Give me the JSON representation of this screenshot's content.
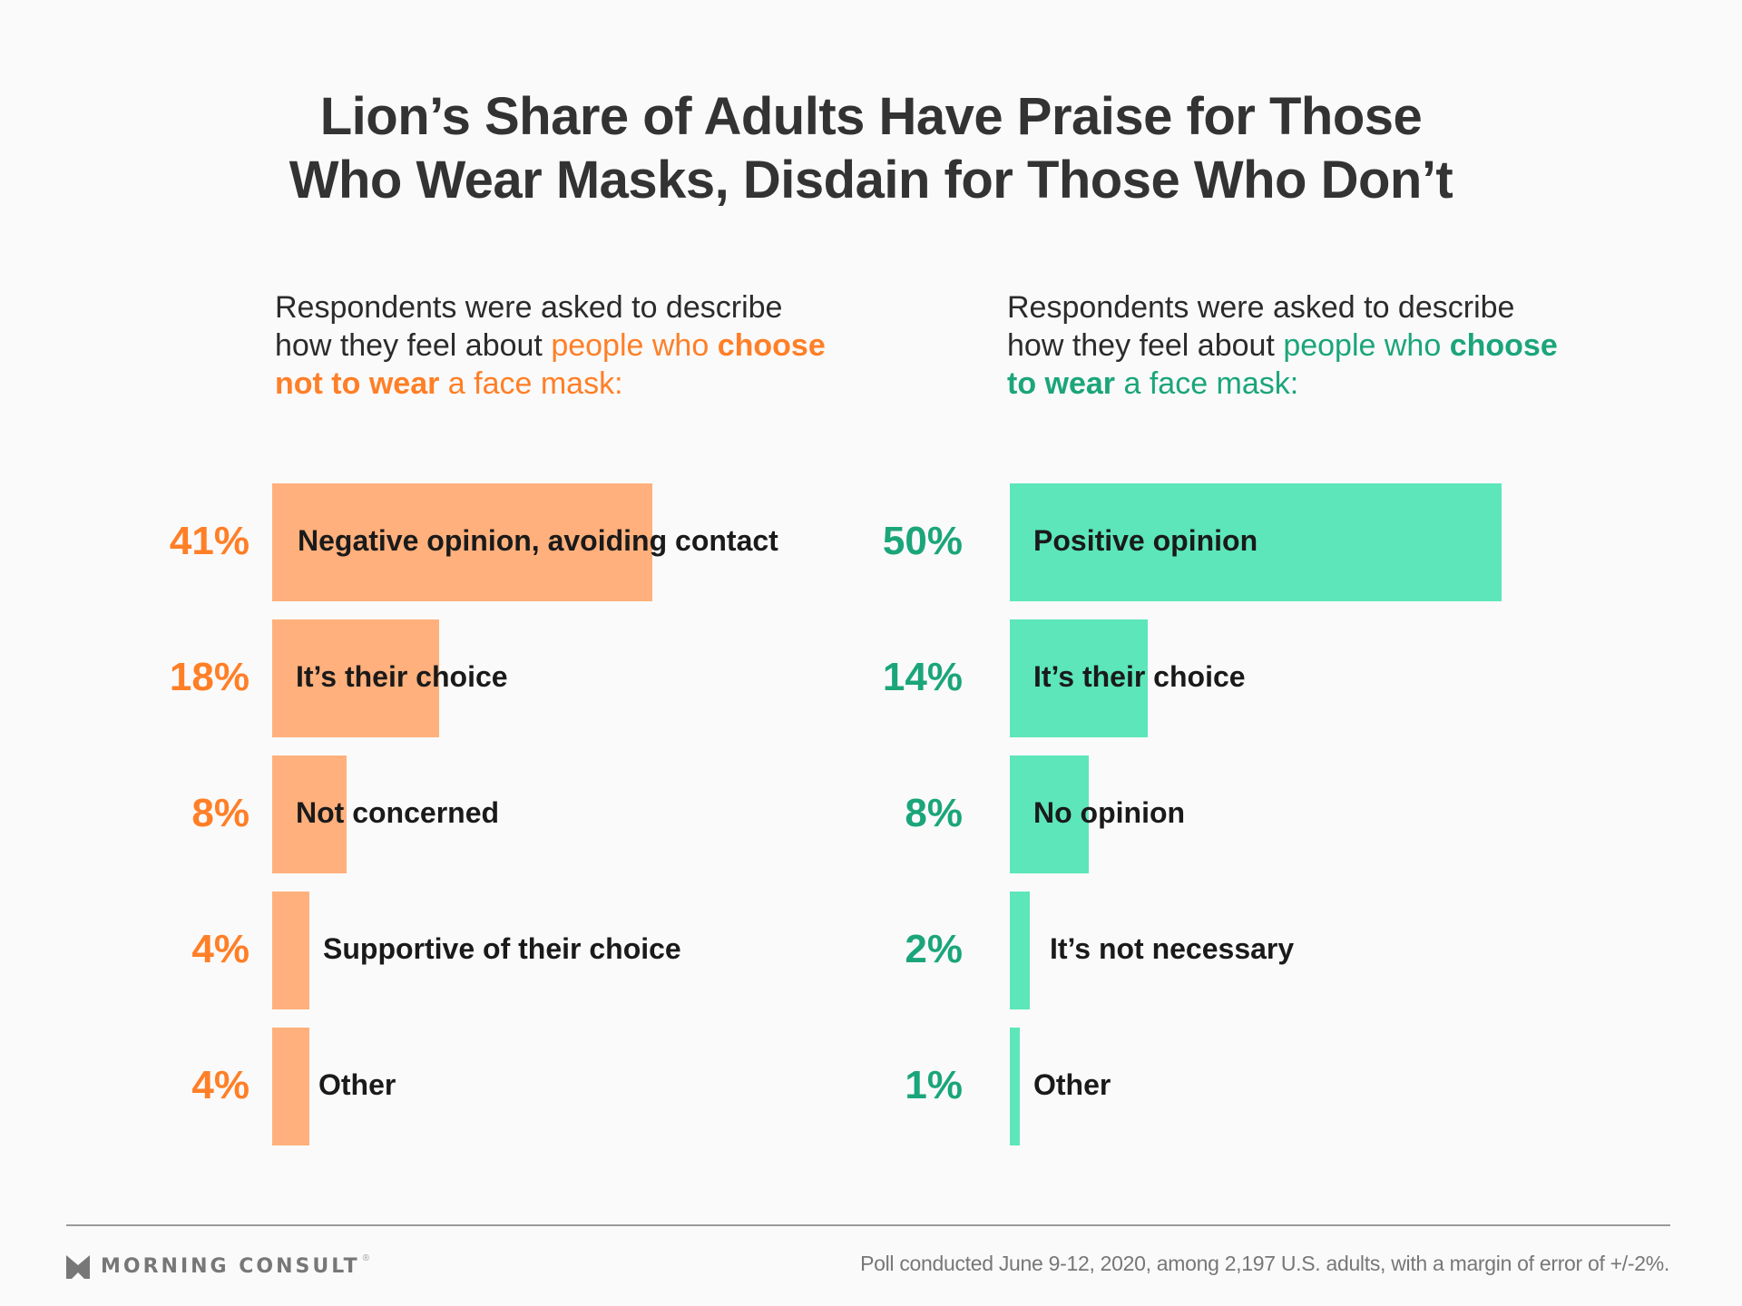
{
  "title": {
    "line1": "Lion’s Share of Adults Have Praise for Those",
    "line2": "Who Wear Masks, Disdain for Those Who Don’t"
  },
  "colors": {
    "orange_text": "#FF7F27",
    "orange_bar": "#FFB07C",
    "green_text": "#1BA57A",
    "green_bar": "#5CE6B9",
    "background": "#FAFAFA",
    "title": "#333333"
  },
  "left_panel": {
    "subtitle": {
      "part1": "Respondents were asked to describe how they feel about ",
      "highlight1": "people who ",
      "highlight_bold": "choose not to wear",
      "highlight2": " a face mask:"
    }
  },
  "right_panel": {
    "subtitle": {
      "part1": "Respondents were asked to describe how they feel about ",
      "highlight1": "people who ",
      "highlight_bold": "choose to wear",
      "highlight2": " a face mask:"
    }
  },
  "chart_data": [
    {
      "type": "bar",
      "orientation": "horizontal",
      "title": "Feelings about people who choose not to wear a face mask",
      "categories": [
        "Negative opinion, avoiding contact",
        "It’s their choice",
        "Not concerned",
        "Supportive of their choice",
        "Other"
      ],
      "values": [
        41,
        18,
        8,
        4,
        4
      ],
      "value_labels": [
        "41%",
        "18%",
        "8%",
        "4%",
        "4%"
      ],
      "unit": "%",
      "color": "#FFB07C",
      "label_color": "#FF7F27",
      "xlim": [
        0,
        50
      ],
      "grid": false
    },
    {
      "type": "bar",
      "orientation": "horizontal",
      "title": "Feelings about people who choose to wear a face mask",
      "categories": [
        "Positive opinion",
        "It’s their choice",
        "No opinion",
        "It’s not necessary",
        "Other"
      ],
      "values": [
        50,
        14,
        8,
        2,
        1
      ],
      "value_labels": [
        "50%",
        "14%",
        "8%",
        "2%",
        "1%"
      ],
      "unit": "%",
      "color": "#5CE6B9",
      "label_color": "#1BA57A",
      "xlim": [
        0,
        50
      ],
      "grid": false
    }
  ],
  "footer": {
    "brand": "MORNING CONSULT",
    "brand_mark": "®",
    "logo_icon": "morning-consult-chevron-logo",
    "note": "Poll conducted June 9-12, 2020, among 2,197 U.S. adults, with a margin of error of +/-2%."
  }
}
